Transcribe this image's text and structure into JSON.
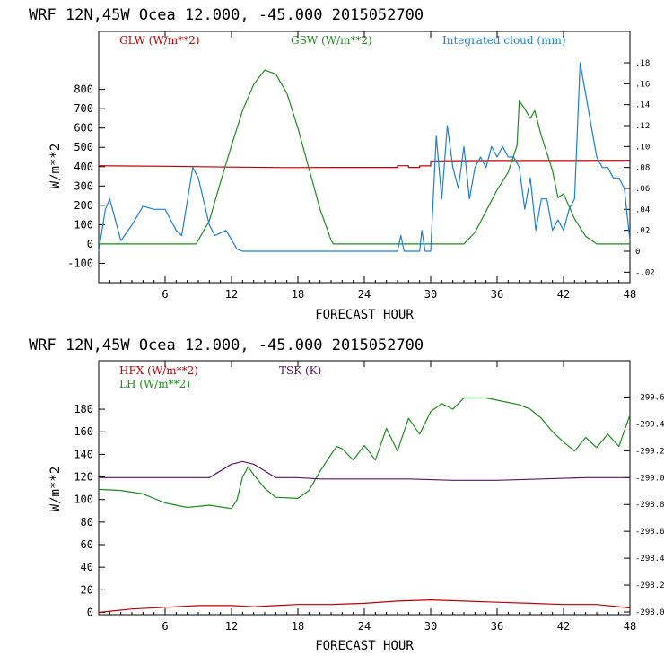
{
  "colors": {
    "red": "#c00000",
    "green": "#1e8c1e",
    "blue": "#1a7fd6",
    "purple": "#5a1660",
    "frame": "#000000"
  },
  "chart_data": [
    {
      "type": "line",
      "title": "WRF  12N,45W Ocea  12.000, -45.000  2015052700",
      "xlabel": "FORECAST HOUR",
      "ylabel": "W/m**2",
      "xlim": [
        0,
        48
      ],
      "ylim": [
        -200,
        1100
      ],
      "xticks": [
        "6",
        "12",
        "18",
        "24",
        "30",
        "36",
        "42",
        "48"
      ],
      "yticks": [
        "800",
        "700",
        "600",
        "500",
        "400",
        "300",
        "200",
        "100",
        "0",
        "-100"
      ],
      "yticks_right": [
        ".18",
        ".16",
        ".14",
        ".12",
        ".10",
        ".08",
        ".06",
        ".04",
        ".02",
        "0",
        "-.02"
      ],
      "ylim_right": [
        -0.03,
        0.21
      ],
      "series": [
        {
          "name": "GLW (W/m**2)",
          "color": "red",
          "axis": "left",
          "points": [
            [
              0,
              405
            ],
            [
              6,
              402
            ],
            [
              12,
              398
            ],
            [
              17,
              395
            ],
            [
              24,
              396
            ],
            [
              27,
              396
            ],
            [
              27,
              405
            ],
            [
              28,
              405
            ],
            [
              28,
              396
            ],
            [
              29,
              396
            ],
            [
              29,
              404
            ],
            [
              30,
              404
            ],
            [
              30,
              430
            ],
            [
              36,
              432
            ],
            [
              42,
              432
            ],
            [
              48,
              433
            ]
          ]
        },
        {
          "name": "GSW (W/m**2)",
          "color": "green",
          "axis": "left",
          "points": [
            [
              0,
              0
            ],
            [
              8.8,
              0
            ],
            [
              10,
              120
            ],
            [
              11,
              320
            ],
            [
              12,
              510
            ],
            [
              13,
              690
            ],
            [
              14,
              825
            ],
            [
              15,
              900
            ],
            [
              16,
              880
            ],
            [
              17,
              780
            ],
            [
              18,
              600
            ],
            [
              19,
              390
            ],
            [
              20,
              180
            ],
            [
              21,
              20
            ],
            [
              21.2,
              0
            ],
            [
              33,
              0
            ],
            [
              34,
              60
            ],
            [
              35,
              170
            ],
            [
              36,
              280
            ],
            [
              37,
              370
            ],
            [
              37.8,
              510
            ],
            [
              38,
              740
            ],
            [
              38.5,
              700
            ],
            [
              39,
              650
            ],
            [
              39.4,
              690
            ],
            [
              40,
              560
            ],
            [
              41,
              380
            ],
            [
              41.5,
              240
            ],
            [
              42,
              260
            ],
            [
              43,
              130
            ],
            [
              44,
              40
            ],
            [
              45,
              0
            ],
            [
              48,
              0
            ]
          ]
        },
        {
          "name": "Integrated cloud (mm)",
          "color": "blue",
          "axis": "right",
          "points": [
            [
              0,
              0
            ],
            [
              0.6,
              0.04
            ],
            [
              1,
              0.05
            ],
            [
              2,
              0.01
            ],
            [
              3,
              0.025
            ],
            [
              4,
              0.043
            ],
            [
              5,
              0.04
            ],
            [
              6,
              0.04
            ],
            [
              7,
              0.02
            ],
            [
              7.5,
              0.015
            ],
            [
              8.5,
              0.08
            ],
            [
              9,
              0.07
            ],
            [
              10,
              0.025
            ],
            [
              10.5,
              0.015
            ],
            [
              11.5,
              0.02
            ],
            [
              12.5,
              0.002
            ],
            [
              13,
              0
            ],
            [
              27,
              0
            ],
            [
              27.3,
              0.015
            ],
            [
              27.6,
              0
            ],
            [
              29,
              0
            ],
            [
              29.2,
              0.02
            ],
            [
              29.5,
              0
            ],
            [
              30,
              0
            ],
            [
              30.5,
              0.11
            ],
            [
              31,
              0.05
            ],
            [
              31.5,
              0.12
            ],
            [
              32,
              0.08
            ],
            [
              32.5,
              0.06
            ],
            [
              33,
              0.1
            ],
            [
              33.5,
              0.05
            ],
            [
              34,
              0.08
            ],
            [
              34.5,
              0.09
            ],
            [
              35,
              0.08
            ],
            [
              35.5,
              0.1
            ],
            [
              36,
              0.09
            ],
            [
              36.5,
              0.1
            ],
            [
              37,
              0.09
            ],
            [
              37.5,
              0.09
            ],
            [
              38,
              0.08
            ],
            [
              38.5,
              0.04
            ],
            [
              39,
              0.07
            ],
            [
              39.5,
              0.02
            ],
            [
              40,
              0.05
            ],
            [
              40.5,
              0.05
            ],
            [
              41,
              0.02
            ],
            [
              41.5,
              0.03
            ],
            [
              42,
              0.02
            ],
            [
              42.5,
              0.04
            ],
            [
              43,
              0.05
            ],
            [
              43.5,
              0.18
            ],
            [
              44,
              0.15
            ],
            [
              44.5,
              0.12
            ],
            [
              45,
              0.09
            ],
            [
              45.5,
              0.08
            ],
            [
              46,
              0.08
            ],
            [
              46.5,
              0.07
            ],
            [
              47,
              0.07
            ],
            [
              47.5,
              0.06
            ],
            [
              48,
              0.01
            ]
          ]
        }
      ]
    },
    {
      "type": "line",
      "title": "WRF  12N,45W Ocea  12.000, -45.000  2015052700",
      "xlabel": "FORECAST HOUR",
      "ylabel": "W/m**2",
      "xlim": [
        0,
        48
      ],
      "ylim": [
        -2,
        223
      ],
      "xticks": [
        "6",
        "12",
        "18",
        "24",
        "30",
        "36",
        "42",
        "48"
      ],
      "yticks": [
        "180",
        "160",
        "140",
        "120",
        "100",
        "80",
        "60",
        "40",
        "20",
        "0"
      ],
      "yticks_right": [
        "299.6",
        "299.4",
        "299.2",
        "299.0",
        "298.8",
        "298.6",
        "298.4",
        "298.2",
        "298.0"
      ],
      "ylim_right": [
        297.98,
        299.87
      ],
      "series": [
        {
          "name": "HFX (W/m**2)",
          "color": "red",
          "axis": "left",
          "points": [
            [
              0,
              0
            ],
            [
              3,
              3
            ],
            [
              6,
              4.5
            ],
            [
              9,
              6
            ],
            [
              12,
              6
            ],
            [
              14,
              5
            ],
            [
              16,
              6
            ],
            [
              18,
              7
            ],
            [
              21,
              7
            ],
            [
              24,
              8
            ],
            [
              27,
              10
            ],
            [
              30,
              11
            ],
            [
              33,
              10
            ],
            [
              36,
              9
            ],
            [
              39,
              8
            ],
            [
              42,
              7
            ],
            [
              45,
              7
            ],
            [
              48,
              4
            ]
          ]
        },
        {
          "name": "LH (W/m**2)",
          "color": "green",
          "axis": "left",
          "points": [
            [
              0,
              109
            ],
            [
              2,
              108
            ],
            [
              4,
              105
            ],
            [
              6,
              97
            ],
            [
              8,
              93
            ],
            [
              10,
              95
            ],
            [
              12,
              92
            ],
            [
              12.5,
              100
            ],
            [
              13,
              120
            ],
            [
              13.5,
              129
            ],
            [
              14,
              122
            ],
            [
              15,
              110
            ],
            [
              16,
              102
            ],
            [
              18,
              101
            ],
            [
              19,
              108
            ],
            [
              20,
              125
            ],
            [
              21,
              140
            ],
            [
              21.5,
              147
            ],
            [
              22,
              145
            ],
            [
              23,
              135
            ],
            [
              24,
              148
            ],
            [
              25,
              135
            ],
            [
              26,
              163
            ],
            [
              27,
              143
            ],
            [
              28,
              172
            ],
            [
              29,
              158
            ],
            [
              30,
              178
            ],
            [
              31,
              185
            ],
            [
              32,
              180
            ],
            [
              33,
              190
            ],
            [
              35,
              190
            ],
            [
              37,
              186
            ],
            [
              38,
              184
            ],
            [
              39,
              180
            ],
            [
              40,
              172
            ],
            [
              41,
              160
            ],
            [
              42,
              151
            ],
            [
              43,
              143
            ],
            [
              44,
              155
            ],
            [
              45,
              146
            ],
            [
              46,
              158
            ],
            [
              47,
              147
            ],
            [
              48,
              175
            ]
          ]
        },
        {
          "name": "TSK (K)",
          "color": "purple",
          "axis": "right",
          "points": [
            [
              0,
              299.0
            ],
            [
              3,
              299.0
            ],
            [
              6,
              299.0
            ],
            [
              10,
              299.0
            ],
            [
              12,
              299.1
            ],
            [
              13,
              299.12
            ],
            [
              14,
              299.1
            ],
            [
              15,
              299.05
            ],
            [
              16,
              299.0
            ],
            [
              18,
              299.0
            ],
            [
              20,
              298.99
            ],
            [
              24,
              298.99
            ],
            [
              28,
              298.99
            ],
            [
              32,
              298.98
            ],
            [
              36,
              298.98
            ],
            [
              40,
              298.99
            ],
            [
              44,
              299.0
            ],
            [
              48,
              299.0
            ]
          ]
        }
      ]
    }
  ]
}
